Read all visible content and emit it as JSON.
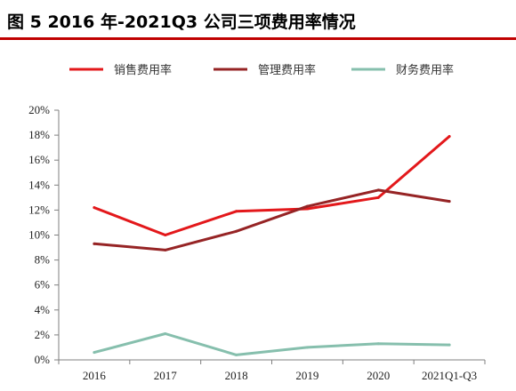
{
  "figure": {
    "title": "图 5 2016 年-2021Q3 公司三项费用率情况"
  },
  "colors": {
    "title_rule": "#c00000"
  },
  "chart_data": {
    "type": "line",
    "title": "",
    "xlabel": "",
    "ylabel": "",
    "x": [
      "2016",
      "2017",
      "2018",
      "2019",
      "2020",
      "2021Q1-Q3"
    ],
    "ylim": [
      0,
      20
    ],
    "yticks": [
      "0%",
      "2%",
      "4%",
      "6%",
      "8%",
      "10%",
      "12%",
      "14%",
      "16%",
      "18%",
      "20%"
    ],
    "grid": false,
    "legend_position": "top",
    "series": [
      {
        "name": "销售费用率",
        "color": "#e3181b",
        "values": [
          12.2,
          10.0,
          11.9,
          12.1,
          13.0,
          17.9
        ]
      },
      {
        "name": "管理费用率",
        "color": "#962425",
        "values": [
          9.3,
          8.8,
          10.3,
          12.3,
          13.6,
          12.7
        ]
      },
      {
        "name": "财务费用率",
        "color": "#86bfad",
        "values": [
          0.6,
          2.1,
          0.4,
          1.0,
          1.3,
          1.2
        ]
      }
    ]
  }
}
